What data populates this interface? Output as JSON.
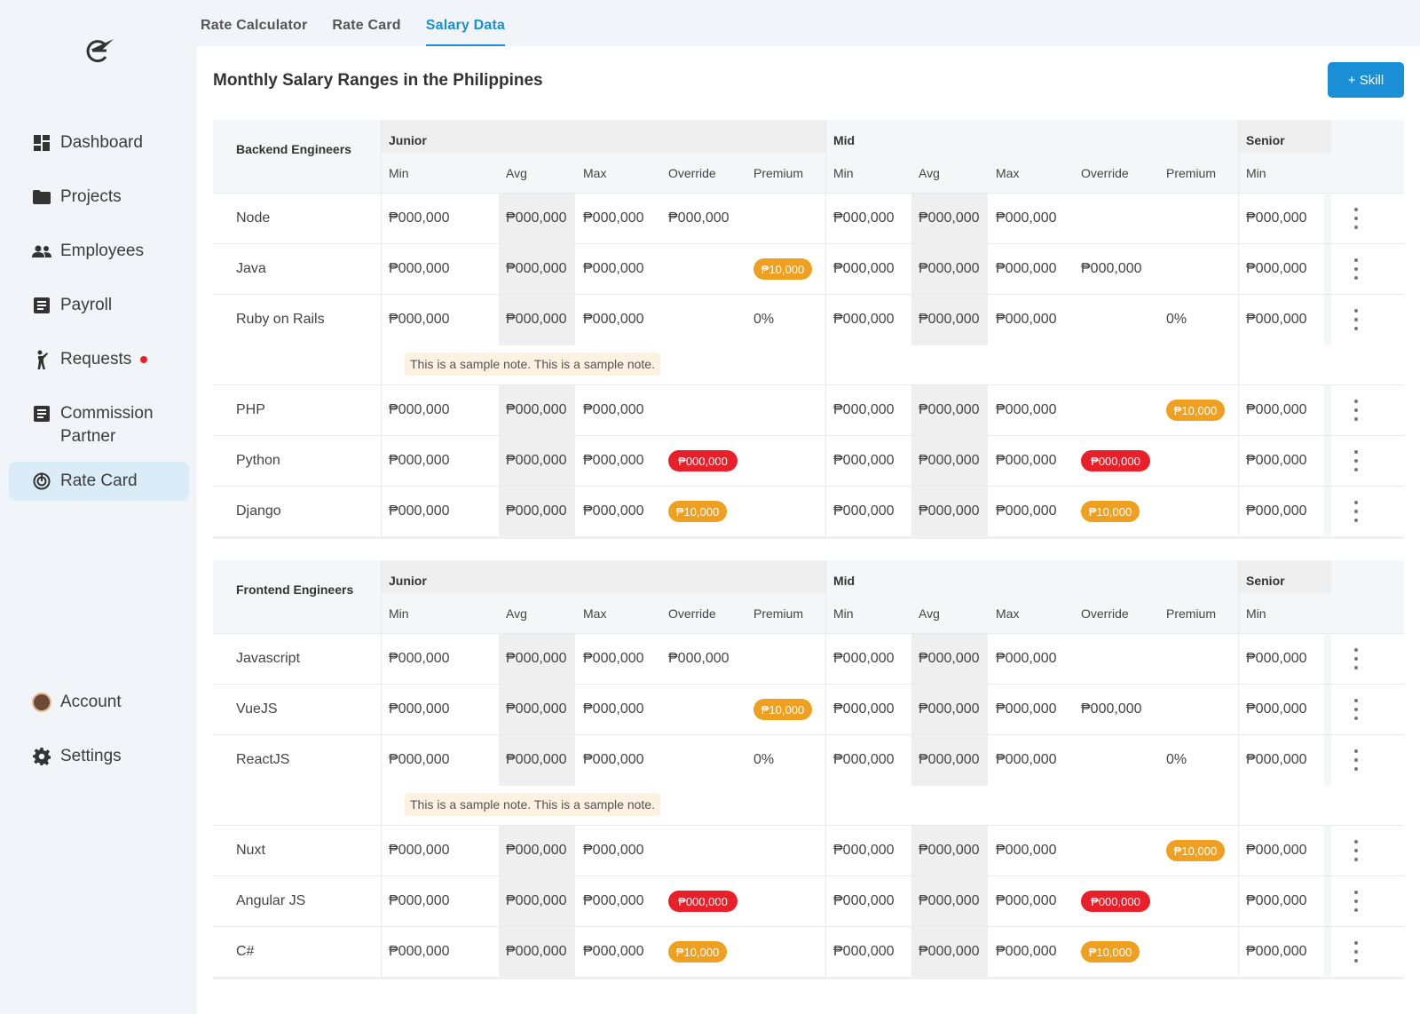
{
  "sidebar": {
    "items": [
      {
        "label": "Dashboard",
        "icon": "dashboard-icon"
      },
      {
        "label": "Projects",
        "icon": "folder-icon"
      },
      {
        "label": "Employees",
        "icon": "people-icon"
      },
      {
        "label": "Payroll",
        "icon": "payroll-icon"
      },
      {
        "label": "Requests",
        "icon": "request-icon",
        "dot": true
      },
      {
        "label": "Commission Partner",
        "icon": "commission-icon"
      },
      {
        "label": "Rate Card",
        "icon": "ratecard-icon",
        "active": true
      }
    ],
    "bottom": [
      {
        "label": "Account",
        "icon": "avatar"
      },
      {
        "label": "Settings",
        "icon": "gear-icon"
      }
    ]
  },
  "tabs": [
    "Rate Calculator",
    "Rate Card",
    "Salary Data"
  ],
  "active_tab": "Salary Data",
  "page_title": "Monthly Salary Ranges in the Philippines",
  "add_button": "+ Skill",
  "levels": [
    "Junior",
    "Mid",
    "Senior"
  ],
  "columns": [
    "Min",
    "Avg",
    "Max",
    "Override",
    "Premium"
  ],
  "senior_columns": [
    "Min"
  ],
  "colors": {
    "accent": "#1a8fd6",
    "badge_orange": "#f0a020",
    "badge_red": "#e8202a",
    "active_nav": "#d9ecf7"
  },
  "sections": [
    {
      "title": "Backend Engineers",
      "rows": [
        {
          "skill": "Node",
          "junior": [
            "₱000,000",
            "₱000,000",
            "₱000,000",
            "₱000,000",
            ""
          ],
          "mid": [
            "₱000,000",
            "₱000,000",
            "₱000,000",
            "",
            ""
          ],
          "senior": "₱000,000"
        },
        {
          "skill": "Java",
          "junior": [
            "₱000,000",
            "₱000,000",
            "₱000,000",
            "",
            "badge-orange:₱10,000"
          ],
          "mid": [
            "₱000,000",
            "₱000,000",
            "₱000,000",
            "₱000,000",
            ""
          ],
          "senior": "₱000,000"
        },
        {
          "skill": "Ruby on Rails",
          "junior": [
            "₱000,000",
            "₱000,000",
            "₱000,000",
            "",
            "0%"
          ],
          "mid": [
            "₱000,000",
            "₱000,000",
            "₱000,000",
            "",
            "0%"
          ],
          "senior": "₱000,000",
          "note": "This is a sample note. This is a sample note."
        },
        {
          "skill": "PHP",
          "junior": [
            "₱000,000",
            "₱000,000",
            "₱000,000",
            "",
            ""
          ],
          "mid": [
            "₱000,000",
            "₱000,000",
            "₱000,000",
            "",
            "badge-orange:₱10,000"
          ],
          "senior": "₱000,000"
        },
        {
          "skill": "Python",
          "junior": [
            "₱000,000",
            "₱000,000",
            "₱000,000",
            "badge-red:₱000,000",
            ""
          ],
          "mid": [
            "₱000,000",
            "₱000,000",
            "₱000,000",
            "badge-red:₱000,000",
            ""
          ],
          "senior": "₱000,000"
        },
        {
          "skill": "Django",
          "junior": [
            "₱000,000",
            "₱000,000",
            "₱000,000",
            "badge-orange:₱10,000",
            ""
          ],
          "mid": [
            "₱000,000",
            "₱000,000",
            "₱000,000",
            "badge-orange:₱10,000",
            ""
          ],
          "senior": "₱000,000"
        }
      ]
    },
    {
      "title": "Frontend Engineers",
      "rows": [
        {
          "skill": "Javascript",
          "junior": [
            "₱000,000",
            "₱000,000",
            "₱000,000",
            "₱000,000",
            ""
          ],
          "mid": [
            "₱000,000",
            "₱000,000",
            "₱000,000",
            "",
            ""
          ],
          "senior": "₱000,000"
        },
        {
          "skill": "VueJS",
          "junior": [
            "₱000,000",
            "₱000,000",
            "₱000,000",
            "",
            "badge-orange:₱10,000"
          ],
          "mid": [
            "₱000,000",
            "₱000,000",
            "₱000,000",
            "₱000,000",
            ""
          ],
          "senior": "₱000,000"
        },
        {
          "skill": "ReactJS",
          "junior": [
            "₱000,000",
            "₱000,000",
            "₱000,000",
            "",
            "0%"
          ],
          "mid": [
            "₱000,000",
            "₱000,000",
            "₱000,000",
            "",
            "0%"
          ],
          "senior": "₱000,000",
          "note": "This is a sample note. This is a sample note."
        },
        {
          "skill": "Nuxt",
          "junior": [
            "₱000,000",
            "₱000,000",
            "₱000,000",
            "",
            ""
          ],
          "mid": [
            "₱000,000",
            "₱000,000",
            "₱000,000",
            "",
            "badge-orange:₱10,000"
          ],
          "senior": "₱000,000"
        },
        {
          "skill": "Angular JS",
          "junior": [
            "₱000,000",
            "₱000,000",
            "₱000,000",
            "badge-red:₱000,000",
            ""
          ],
          "mid": [
            "₱000,000",
            "₱000,000",
            "₱000,000",
            "badge-red:₱000,000",
            ""
          ],
          "senior": "₱000,000"
        },
        {
          "skill": "C#",
          "junior": [
            "₱000,000",
            "₱000,000",
            "₱000,000",
            "badge-orange:₱10,000",
            ""
          ],
          "mid": [
            "₱000,000",
            "₱000,000",
            "₱000,000",
            "badge-orange:₱10,000",
            ""
          ],
          "senior": "₱000,000"
        }
      ]
    }
  ]
}
